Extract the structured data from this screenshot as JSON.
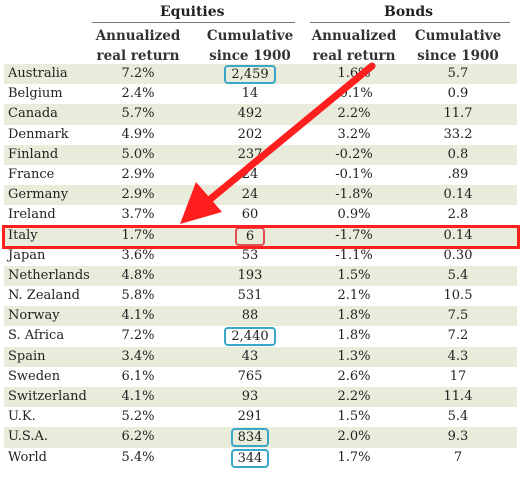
{
  "header": {
    "group_equities": "Equities",
    "group_bonds": "Bonds",
    "columns": [
      {
        "line1": "Annualized",
        "line2": "real return"
      },
      {
        "line1": "Cumulative",
        "line2": "since 1900"
      },
      {
        "line1": "Annualized",
        "line2": "real return"
      },
      {
        "line1": "Cumulative",
        "line2": "since 1900"
      }
    ]
  },
  "rows": [
    {
      "country": "Australia",
      "eq_ann": "7.2%",
      "eq_cum": "2,459",
      "bd_ann": "1.6%",
      "bd_cum": "5.7"
    },
    {
      "country": "Belgium",
      "eq_ann": "2.4%",
      "eq_cum": "14",
      "bd_ann": "-0.1%",
      "bd_cum": "0.9"
    },
    {
      "country": "Canada",
      "eq_ann": "5.7%",
      "eq_cum": "492",
      "bd_ann": "2.2%",
      "bd_cum": "11.7"
    },
    {
      "country": "Denmark",
      "eq_ann": "4.9%",
      "eq_cum": "202",
      "bd_ann": "3.2%",
      "bd_cum": "33.2"
    },
    {
      "country": "Finland",
      "eq_ann": "5.0%",
      "eq_cum": "237",
      "bd_ann": "-0.2%",
      "bd_cum": "0.8"
    },
    {
      "country": "France",
      "eq_ann": "2.9%",
      "eq_cum": "24",
      "bd_ann": "-0.1%",
      "bd_cum": ".89"
    },
    {
      "country": "Germany",
      "eq_ann": "2.9%",
      "eq_cum": "24",
      "bd_ann": "-1.8%",
      "bd_cum": "0.14"
    },
    {
      "country": "Ireland",
      "eq_ann": "3.7%",
      "eq_cum": "60",
      "bd_ann": "0.9%",
      "bd_cum": "2.8"
    },
    {
      "country": "Italy",
      "eq_ann": "1.7%",
      "eq_cum": "6",
      "bd_ann": "-1.7%",
      "bd_cum": "0.14"
    },
    {
      "country": "Japan",
      "eq_ann": "3.6%",
      "eq_cum": "53",
      "bd_ann": "-1.1%",
      "bd_cum": "0.30"
    },
    {
      "country": "Netherlands",
      "eq_ann": "4.8%",
      "eq_cum": "193",
      "bd_ann": "1.5%",
      "bd_cum": "5.4"
    },
    {
      "country": "N. Zealand",
      "eq_ann": "5.8%",
      "eq_cum": "531",
      "bd_ann": "2.1%",
      "bd_cum": "10.5"
    },
    {
      "country": "Norway",
      "eq_ann": "4.1%",
      "eq_cum": "88",
      "bd_ann": "1.8%",
      "bd_cum": "7.5"
    },
    {
      "country": "S. Africa",
      "eq_ann": "7.2%",
      "eq_cum": "2,440",
      "bd_ann": "1.8%",
      "bd_cum": "7.2"
    },
    {
      "country": "Spain",
      "eq_ann": "3.4%",
      "eq_cum": "43",
      "bd_ann": "1.3%",
      "bd_cum": "4.3"
    },
    {
      "country": "Sweden",
      "eq_ann": "6.1%",
      "eq_cum": "765",
      "bd_ann": "2.6%",
      "bd_cum": "17"
    },
    {
      "country": "Switzerland",
      "eq_ann": "4.1%",
      "eq_cum": "93",
      "bd_ann": "2.2%",
      "bd_cum": "11.4"
    },
    {
      "country": "U.K.",
      "eq_ann": "5.2%",
      "eq_cum": "291",
      "bd_ann": "1.5%",
      "bd_cum": "5.4"
    },
    {
      "country": "U.S.A.",
      "eq_ann": "6.2%",
      "eq_cum": "834",
      "bd_ann": "2.0%",
      "bd_cum": "9.3"
    },
    {
      "country": "World",
      "eq_ann": "5.4%",
      "eq_cum": "344",
      "bd_ann": "1.7%",
      "bd_cum": "7"
    }
  ],
  "style": {
    "shade_color": "#e9ecda",
    "blue_box_color": "#3aa7c9",
    "red_color": "#ff1f1f"
  }
}
